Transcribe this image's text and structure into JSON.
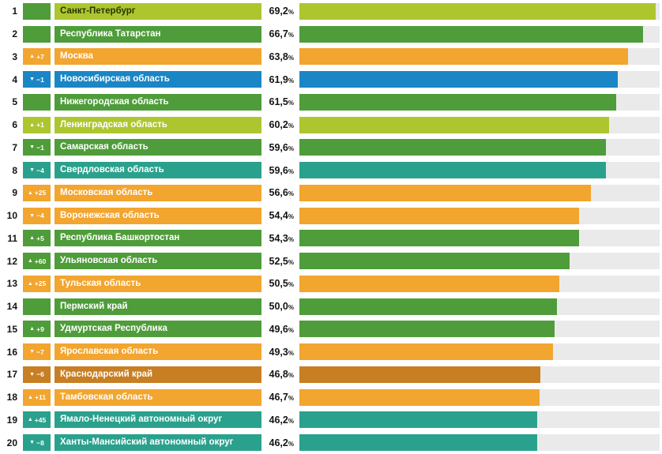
{
  "chart_data": {
    "type": "bar",
    "orientation": "horizontal",
    "value_suffix": "%",
    "xlim": [
      0,
      70
    ],
    "grid": false,
    "legend": "none",
    "palette": {
      "lime": "#adc62f",
      "green": "#4f9c3a",
      "orange": "#f2a52f",
      "blue": "#1a86c6",
      "teal": "#2aa18d",
      "dark_orange": "#c87e22",
      "track": "#eaeaea"
    },
    "rows": [
      {
        "rank": "1",
        "region": "Санкт-Петербург",
        "value": 69.2,
        "value_label": "69,2",
        "change": null,
        "color": "lime",
        "badge_color": "green",
        "label_text": "dark"
      },
      {
        "rank": "2",
        "region": "Республика Татарстан",
        "value": 66.7,
        "value_label": "66,7",
        "change": null,
        "color": "green",
        "badge_color": "green",
        "label_text": "light"
      },
      {
        "rank": "3",
        "region": "Москва",
        "value": 63.8,
        "value_label": "63,8",
        "change": {
          "direction": "up",
          "delta": "+7"
        },
        "color": "orange",
        "badge_color": "orange",
        "label_text": "light"
      },
      {
        "rank": "4",
        "region": "Новосибирская область",
        "value": 61.9,
        "value_label": "61,9",
        "change": {
          "direction": "down",
          "delta": "−1"
        },
        "color": "blue",
        "badge_color": "blue",
        "label_text": "light"
      },
      {
        "rank": "5",
        "region": "Нижегородская область",
        "value": 61.5,
        "value_label": "61,5",
        "change": null,
        "color": "green",
        "badge_color": "green",
        "label_text": "light"
      },
      {
        "rank": "6",
        "region": "Ленинградская область",
        "value": 60.2,
        "value_label": "60,2",
        "change": {
          "direction": "up",
          "delta": "+1"
        },
        "color": "lime",
        "badge_color": "lime",
        "label_text": "light"
      },
      {
        "rank": "7",
        "region": "Самарская область",
        "value": 59.6,
        "value_label": "59,6",
        "change": {
          "direction": "down",
          "delta": "−1"
        },
        "color": "green",
        "badge_color": "green",
        "label_text": "light"
      },
      {
        "rank": "8",
        "region": "Свердловская область",
        "value": 59.6,
        "value_label": "59,6",
        "change": {
          "direction": "down",
          "delta": "−4"
        },
        "color": "teal",
        "badge_color": "teal",
        "label_text": "light"
      },
      {
        "rank": "9",
        "region": "Московская область",
        "value": 56.6,
        "value_label": "56,6",
        "change": {
          "direction": "up",
          "delta": "+25"
        },
        "color": "orange",
        "badge_color": "orange",
        "label_text": "light"
      },
      {
        "rank": "10",
        "region": "Воронежская область",
        "value": 54.4,
        "value_label": "54,4",
        "change": {
          "direction": "down",
          "delta": "−4"
        },
        "color": "orange",
        "badge_color": "orange",
        "label_text": "light"
      },
      {
        "rank": "11",
        "region": "Республика Башкортостан",
        "value": 54.3,
        "value_label": "54,3",
        "change": {
          "direction": "up",
          "delta": "+5"
        },
        "color": "green",
        "badge_color": "green",
        "label_text": "light"
      },
      {
        "rank": "12",
        "region": "Ульяновская область",
        "value": 52.5,
        "value_label": "52,5",
        "change": {
          "direction": "up",
          "delta": "+60"
        },
        "color": "green",
        "badge_color": "green",
        "label_text": "light"
      },
      {
        "rank": "13",
        "region": "Тульская область",
        "value": 50.5,
        "value_label": "50,5",
        "change": {
          "direction": "up",
          "delta": "+25"
        },
        "color": "orange",
        "badge_color": "orange",
        "label_text": "light"
      },
      {
        "rank": "14",
        "region": "Пермский край",
        "value": 50.0,
        "value_label": "50,0",
        "change": null,
        "color": "green",
        "badge_color": "green",
        "label_text": "light"
      },
      {
        "rank": "15",
        "region": "Удмуртская Республика",
        "value": 49.6,
        "value_label": "49,6",
        "change": {
          "direction": "up",
          "delta": "+9"
        },
        "color": "green",
        "badge_color": "green",
        "label_text": "light"
      },
      {
        "rank": "16",
        "region": "Ярославская область",
        "value": 49.3,
        "value_label": "49,3",
        "change": {
          "direction": "down",
          "delta": "−7"
        },
        "color": "orange",
        "badge_color": "orange",
        "label_text": "light"
      },
      {
        "rank": "17",
        "region": "Краснодарский край",
        "value": 46.8,
        "value_label": "46,8",
        "change": {
          "direction": "down",
          "delta": "−6"
        },
        "color": "dark_orange",
        "badge_color": "dark_orange",
        "label_text": "light"
      },
      {
        "rank": "18",
        "region": "Тамбовская область",
        "value": 46.7,
        "value_label": "46,7",
        "change": {
          "direction": "up",
          "delta": "+11"
        },
        "color": "orange",
        "badge_color": "orange",
        "label_text": "light"
      },
      {
        "rank": "19",
        "region": "Ямало-Ненецкий автономный округ",
        "value": 46.2,
        "value_label": "46,2",
        "change": {
          "direction": "up",
          "delta": "+45"
        },
        "color": "teal",
        "badge_color": "teal",
        "label_text": "light"
      },
      {
        "rank": "20",
        "region": "Ханты-Мансийский автономный округ",
        "value": 46.2,
        "value_label": "46,2",
        "change": {
          "direction": "down",
          "delta": "−8"
        },
        "color": "teal",
        "badge_color": "teal",
        "label_text": "light"
      }
    ]
  }
}
